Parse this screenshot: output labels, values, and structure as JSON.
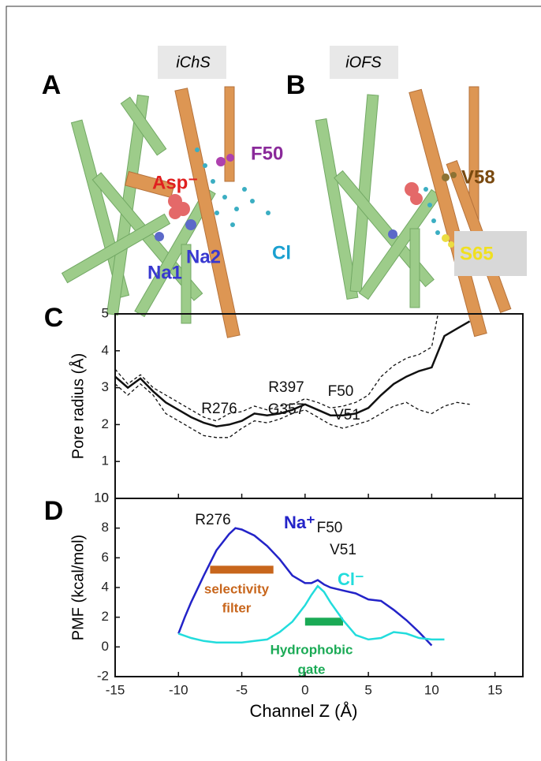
{
  "panels": [
    {
      "letter": "A",
      "state": "iChS",
      "labels": [
        "F50",
        "Asp⁻",
        "Na1",
        "Na2",
        "Cl"
      ]
    },
    {
      "letter": "B",
      "state": "iOFS",
      "labels": [
        "V58",
        "S65"
      ]
    }
  ],
  "chart_data": [
    {
      "type": "line",
      "letter": "C",
      "ylabel": "Pore radius (Å)",
      "xlim": [
        -15,
        17.2
      ],
      "xticks": [
        -15,
        -10,
        -5,
        0,
        5,
        10,
        15
      ],
      "ylim": [
        0,
        5
      ],
      "yticks": [
        0,
        1,
        2,
        3,
        4,
        5
      ],
      "series": [
        {
          "color": "#111111",
          "dashed": false,
          "x": [
            -15,
            -14,
            -13,
            -12,
            -11,
            -10,
            -9,
            -8,
            -7,
            -6,
            -5,
            -4,
            -3,
            -2,
            -1,
            0,
            1,
            2,
            3,
            4,
            5,
            6,
            7,
            8,
            9,
            10,
            11,
            12,
            13
          ],
          "values": [
            3.3,
            3.0,
            3.25,
            2.9,
            2.6,
            2.4,
            2.2,
            2.05,
            1.95,
            2.0,
            2.1,
            2.3,
            2.25,
            2.3,
            2.4,
            2.55,
            2.4,
            2.25,
            2.25,
            2.3,
            2.45,
            2.8,
            3.1,
            3.3,
            3.45,
            3.55,
            4.4,
            4.6,
            4.8
          ]
        },
        {
          "color": "#111111",
          "dashed": true,
          "x": [
            -15,
            -14,
            -13,
            -12,
            -11,
            -10,
            -9,
            -8,
            -7,
            -6,
            -5,
            -4,
            -3,
            -2,
            -1,
            0,
            1,
            2,
            3,
            4,
            5,
            6,
            7,
            8,
            9,
            10,
            10.5
          ],
          "values": [
            3.5,
            3.1,
            3.35,
            3.0,
            2.8,
            2.6,
            2.4,
            2.2,
            2.1,
            2.3,
            2.35,
            2.5,
            2.4,
            2.5,
            2.55,
            2.7,
            2.6,
            2.45,
            2.5,
            2.6,
            2.8,
            3.3,
            3.6,
            3.8,
            3.9,
            4.1,
            5.0
          ]
        },
        {
          "color": "#111111",
          "dashed": true,
          "x": [
            -15,
            -14,
            -13,
            -12,
            -11,
            -10,
            -9,
            -8,
            -7,
            -6,
            -5,
            -4,
            -3,
            -2,
            -1,
            0,
            1,
            2,
            3,
            4,
            5,
            6,
            7,
            8,
            9,
            10,
            11,
            12,
            13
          ],
          "values": [
            3.1,
            2.8,
            3.1,
            2.8,
            2.3,
            2.1,
            1.9,
            1.7,
            1.65,
            1.65,
            1.9,
            2.1,
            2.05,
            2.15,
            2.3,
            2.4,
            2.2,
            2.0,
            1.9,
            2.0,
            2.1,
            2.3,
            2.5,
            2.6,
            2.4,
            2.3,
            2.5,
            2.6,
            2.55
          ]
        }
      ],
      "annotations": [
        "R276",
        "R397",
        "G357",
        "F50",
        "V51"
      ]
    },
    {
      "type": "line",
      "letter": "D",
      "xlabel": "Channel Z (Å)",
      "ylabel": "PMF (kcal/mol)",
      "xlim": [
        -15,
        17.2
      ],
      "xticks": [
        -15,
        -10,
        -5,
        0,
        5,
        10,
        15
      ],
      "ylim": [
        -2,
        10
      ],
      "yticks": [
        -2,
        0,
        2,
        4,
        6,
        8,
        10
      ],
      "series": [
        {
          "name": "Na⁺",
          "color": "#2323c8",
          "dashed": false,
          "x": [
            -10,
            -9.5,
            -9,
            -8,
            -7,
            -6,
            -5.5,
            -5,
            -4,
            -3,
            -2,
            -1,
            0,
            0.5,
            1,
            1.5,
            2,
            3,
            4,
            5,
            6,
            7,
            8,
            9,
            10
          ],
          "values": [
            0.9,
            2,
            3,
            4.8,
            6.5,
            7.6,
            8.0,
            7.9,
            7.5,
            6.8,
            5.9,
            4.8,
            4.3,
            4.3,
            4.5,
            4.2,
            4.0,
            3.8,
            3.6,
            3.2,
            3.1,
            2.5,
            1.8,
            1.0,
            0.1
          ]
        },
        {
          "name": "Cl⁻",
          "color": "#22dcdc",
          "dashed": false,
          "x": [
            -10,
            -9,
            -8,
            -7,
            -6,
            -5,
            -4,
            -3,
            -2,
            -1,
            0,
            0.5,
            1,
            1.5,
            2,
            3,
            4,
            5,
            6,
            7,
            8,
            9,
            10,
            11
          ],
          "values": [
            0.9,
            0.6,
            0.4,
            0.3,
            0.3,
            0.3,
            0.4,
            0.5,
            1.0,
            1.7,
            2.8,
            3.5,
            4.1,
            3.7,
            3.0,
            1.8,
            0.8,
            0.5,
            0.6,
            1.0,
            0.9,
            0.6,
            0.5,
            0.5
          ]
        }
      ],
      "bars": [
        {
          "x": [
            -7.5,
            -2.5
          ],
          "y": 5.2,
          "color": "#c8661c"
        },
        {
          "x": [
            0,
            3
          ],
          "y": 1.7,
          "color": "#1aaa55"
        }
      ],
      "annotations": [
        "R276",
        "F50",
        "V51",
        "selectivity",
        "filter",
        "Hydrophobic",
        "gate"
      ]
    }
  ]
}
